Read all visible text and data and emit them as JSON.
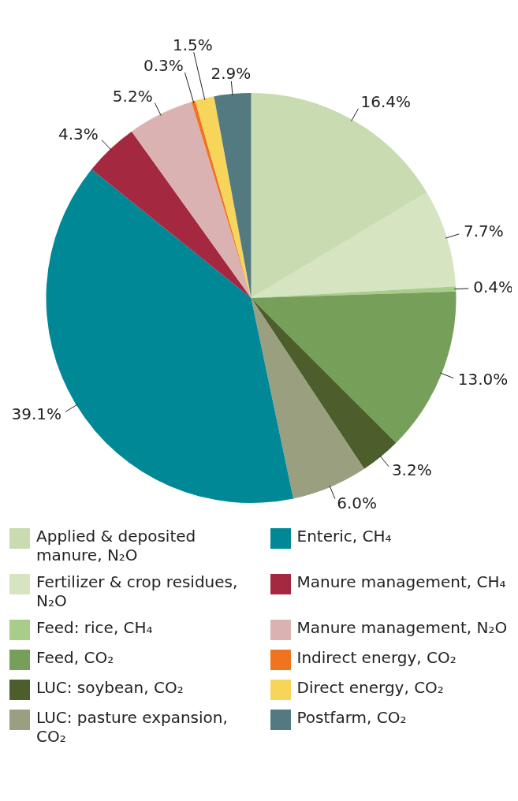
{
  "chart_data": {
    "type": "pie",
    "categories": [
      "Applied & deposited manure, N₂O",
      "Fertilizer & crop residues, N₂O",
      "Feed: rice, CH₄",
      "Feed, CO₂",
      "LUC: soybean, CO₂",
      "LUC: pasture expansion, CO₂",
      "Enteric, CH₄",
      "Manure management, CH₄",
      "Manure management, N₂O",
      "Indirect energy, CO₂",
      "Direct energy, CO₂",
      "Postfarm, CO₂"
    ],
    "values": [
      16.4,
      7.7,
      0.4,
      13.0,
      3.2,
      6.0,
      39.1,
      4.3,
      5.2,
      0.3,
      1.5,
      2.9
    ],
    "colors": [
      "#c9dbb0",
      "#d6e4c1",
      "#a8cc8a",
      "#76a05a",
      "#4c5e2c",
      "#9a9f80",
      "#008897",
      "#a4283f",
      "#dbb2b2",
      "#f07320",
      "#f7d55a",
      "#537a80"
    ],
    "value_labels": [
      "16.4%",
      "7.7%",
      "0.4%",
      "13.0%",
      "3.2%",
      "6.0%",
      "39.1%",
      "4.3%",
      "5.2%",
      "0.3%",
      "1.5%",
      "2.9%"
    ],
    "legend": "bottom"
  }
}
